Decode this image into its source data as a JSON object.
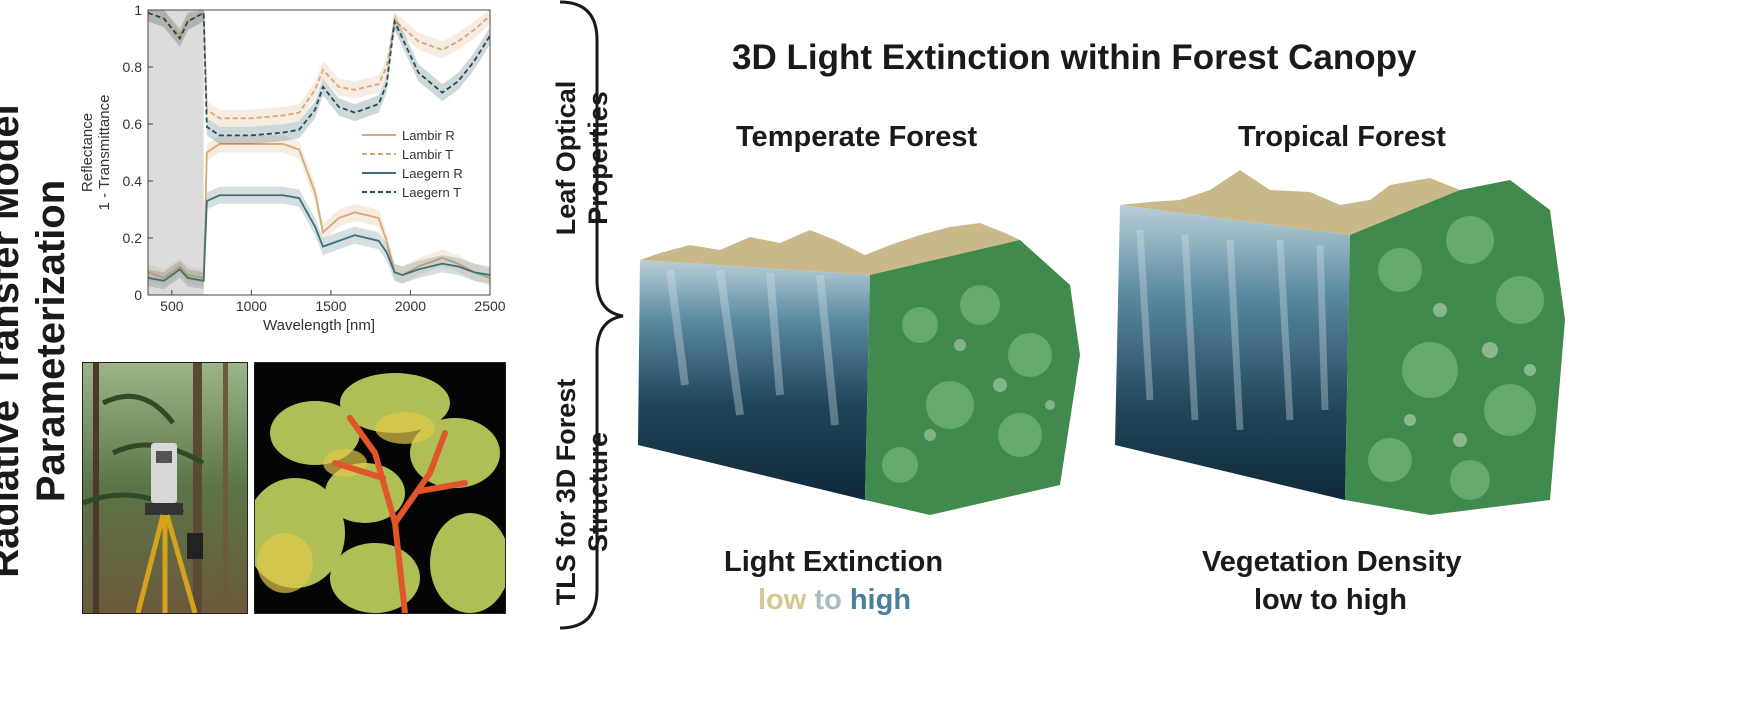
{
  "main_title": "Radiative Transfer Model Parameterization",
  "main_title_lines": [
    "Radiative Transfer Model",
    "Parameterization"
  ],
  "leaf_label_lines": [
    "Leaf Optical",
    "Properties"
  ],
  "tls_label_lines": [
    "TLS for 3D Forest",
    "Structure"
  ],
  "diagram_title": "3D Light Extinction within Forest Canopy",
  "temperate_title": "Temperate Forest",
  "tropical_title": "Tropical Forest",
  "light_extinction": {
    "title": "Light Extinction",
    "scale_words": [
      "low",
      "to",
      "high"
    ]
  },
  "vegetation_density": {
    "title": "Vegetation Density",
    "scale": "low to high"
  },
  "chart_data": {
    "type": "line",
    "xlabel": "Wavelength [nm]",
    "ylabel_lines": [
      "Reflectance",
      "1 - Transmittance"
    ],
    "xlim": [
      350,
      2500
    ],
    "ylim": [
      0,
      1
    ],
    "xticks": [
      500,
      1000,
      1500,
      2000,
      2500
    ],
    "yticks": [
      0,
      0.2,
      0.4,
      0.6,
      0.8,
      1
    ],
    "shaded_region": [
      350,
      700
    ],
    "x": [
      350,
      450,
      550,
      600,
      700,
      720,
      800,
      1000,
      1200,
      1300,
      1400,
      1450,
      1550,
      1650,
      1800,
      1850,
      1900,
      1950,
      2050,
      2200,
      2300,
      2400,
      2500
    ],
    "series": [
      {
        "name": "Lambir R",
        "color": "#d9a877",
        "dash": "solid",
        "values": [
          0.08,
          0.06,
          0.1,
          0.07,
          0.06,
          0.5,
          0.53,
          0.53,
          0.53,
          0.51,
          0.36,
          0.22,
          0.27,
          0.29,
          0.27,
          0.19,
          0.08,
          0.07,
          0.1,
          0.13,
          0.11,
          0.08,
          0.06
        ]
      },
      {
        "name": "Lambir T",
        "color": "#d9a877",
        "dash": "dashed",
        "values": [
          0.99,
          0.97,
          0.91,
          0.96,
          0.99,
          0.65,
          0.62,
          0.62,
          0.63,
          0.64,
          0.72,
          0.79,
          0.73,
          0.72,
          0.74,
          0.8,
          0.96,
          0.94,
          0.89,
          0.86,
          0.89,
          0.93,
          0.98
        ]
      },
      {
        "name": "Laegern R",
        "color": "#3f6f7a",
        "dash": "solid",
        "values": [
          0.06,
          0.05,
          0.09,
          0.06,
          0.05,
          0.33,
          0.35,
          0.35,
          0.35,
          0.34,
          0.24,
          0.17,
          0.19,
          0.21,
          0.19,
          0.15,
          0.08,
          0.07,
          0.09,
          0.11,
          0.1,
          0.08,
          0.07
        ]
      },
      {
        "name": "Laegern T",
        "color": "#1f4d57",
        "dash": "dashed",
        "values": [
          0.99,
          0.97,
          0.9,
          0.96,
          0.99,
          0.59,
          0.56,
          0.56,
          0.57,
          0.58,
          0.65,
          0.73,
          0.66,
          0.64,
          0.67,
          0.74,
          0.96,
          0.9,
          0.78,
          0.71,
          0.75,
          0.82,
          0.91
        ]
      }
    ]
  },
  "colors": {
    "terrain_top": "#cbb98a",
    "shadow_dark": "#163344",
    "shadow_light": "#b9cfd8",
    "foliage": "#3f8a4c",
    "light_low": "#c8b78a",
    "light_high": "#3d6f8a"
  }
}
